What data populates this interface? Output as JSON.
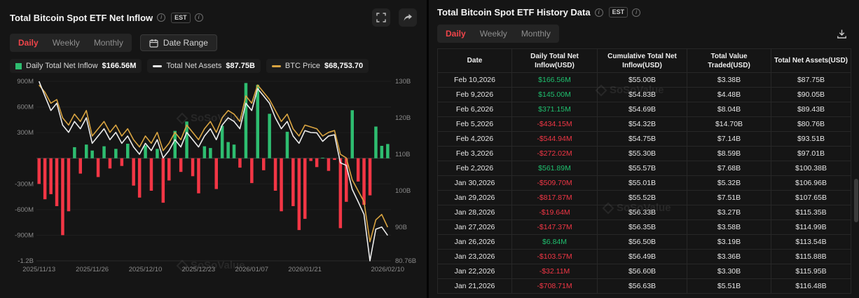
{
  "colors": {
    "accent_red": "#f0454a",
    "positive_green": "#2ebd70",
    "negative_red": "#f23645",
    "line_white": "#ececec",
    "line_orange": "#d9a441",
    "axis_text": "#8a8a8a"
  },
  "left_panel": {
    "title": "Total Bitcoin Spot ETF Net Inflow",
    "est_label": "EST",
    "tabs": [
      "Daily",
      "Weekly",
      "Monthly"
    ],
    "active_tab": "Daily",
    "date_range_label": "Date Range",
    "watermark": "SoSoValue",
    "legend": [
      {
        "label": "Daily Total Net Inflow",
        "value": "$166.56M",
        "color": "#2ebd70",
        "marker": "square"
      },
      {
        "label": "Total Net Assets",
        "value": "$87.75B",
        "color": "#ececec",
        "marker": "dash"
      },
      {
        "label": "BTC Price",
        "value": "$68,753.70",
        "color": "#d9a441",
        "marker": "dash"
      }
    ]
  },
  "chart_data": {
    "type": "combo_bar_line",
    "title": "Total Bitcoin Spot ETF Net Inflow",
    "left_axis": {
      "unit": "USD",
      "ticks": [
        "900M",
        "600M",
        "300M",
        "-300M",
        "-600M",
        "-900M"
      ],
      "bottom_label": "-1.2B",
      "range_m": [
        -1200,
        900
      ]
    },
    "right_axis": {
      "unit": "USD",
      "ticks": [
        "130B",
        "120B",
        "110B",
        "100B",
        "90B"
      ],
      "bottom_label": "80.76B",
      "range_b": [
        80.76,
        130
      ]
    },
    "x_ticks": [
      "2025/11/13",
      "2025/11/26",
      "2025/12/10",
      "2025/12/23",
      "2026/01/07",
      "2026/01/21",
      "2026/02/10"
    ],
    "x_tick_idx": [
      0,
      9,
      18,
      27,
      36,
      45,
      59
    ],
    "dates": [
      "2025/11/13",
      "2025/11/14",
      "2025/11/17",
      "2025/11/18",
      "2025/11/19",
      "2025/11/20",
      "2025/11/21",
      "2025/11/24",
      "2025/11/25",
      "2025/11/26",
      "2025/11/28",
      "2025/12/01",
      "2025/12/02",
      "2025/12/03",
      "2025/12/04",
      "2025/12/05",
      "2025/12/08",
      "2025/12/09",
      "2025/12/10",
      "2025/12/11",
      "2025/12/12",
      "2025/12/15",
      "2025/12/16",
      "2025/12/17",
      "2025/12/18",
      "2025/12/19",
      "2025/12/22",
      "2025/12/23",
      "2025/12/24",
      "2025/12/26",
      "2025/12/29",
      "2025/12/30",
      "2025/12/31",
      "2026/01/02",
      "2026/01/05",
      "2026/01/06",
      "2026/01/07",
      "2026/01/08",
      "2026/01/09",
      "2026/01/12",
      "2026/01/13",
      "2026/01/14",
      "2026/01/15",
      "2026/01/16",
      "2026/01/20",
      "2026/01/21",
      "2026/01/22",
      "2026/01/23",
      "2026/01/26",
      "2026/01/27",
      "2026/01/28",
      "2026/01/29",
      "2026/01/30",
      "2026/02/02",
      "2026/02/03",
      "2026/02/04",
      "2026/02/05",
      "2026/02/06",
      "2026/02/09",
      "2026/02/10"
    ],
    "net_inflow_m": [
      -300,
      -480,
      -420,
      -560,
      -900,
      -620,
      130,
      -180,
      160,
      90,
      -220,
      140,
      -120,
      110,
      -90,
      170,
      -320,
      -460,
      150,
      -380,
      110,
      -520,
      -260,
      320,
      -160,
      430,
      -210,
      -410,
      140,
      120,
      -360,
      380,
      190,
      160,
      -110,
      880,
      -290,
      860,
      -140,
      520,
      -380,
      -620,
      310,
      -560,
      -840,
      -708.71,
      -32.11,
      -103.57,
      6.84,
      -147.37,
      -19.64,
      -817.87,
      -509.7,
      561.89,
      -272.02,
      -544.94,
      -434.15,
      371.15,
      145,
      166.56
    ],
    "net_assets_b": [
      130,
      126,
      122,
      124,
      118,
      116,
      119,
      117,
      120,
      113,
      115,
      117,
      114,
      116,
      113,
      115,
      112,
      110,
      113,
      111,
      114,
      109,
      111,
      114,
      112,
      116,
      114,
      112,
      115,
      117,
      114,
      118,
      120,
      119,
      117,
      124,
      122,
      128,
      126,
      124,
      120,
      117,
      119,
      115,
      113,
      116.48,
      115.95,
      115.88,
      113.54,
      114.99,
      115.35,
      107.65,
      106.96,
      100.38,
      97.01,
      93.51,
      80.76,
      89.43,
      90.05,
      87.75
    ],
    "btc_price_b": [
      129,
      127,
      124,
      125,
      120,
      118,
      121,
      119,
      122,
      115,
      117,
      119,
      116,
      118,
      115,
      117,
      114,
      112,
      115,
      113,
      116,
      111,
      113,
      116,
      114,
      118,
      116,
      114,
      117,
      119,
      116,
      120,
      122,
      121,
      119,
      126,
      124,
      129,
      127,
      125,
      122,
      119,
      121,
      117,
      115,
      118,
      117.5,
      117,
      115,
      116,
      116.5,
      110,
      109,
      103,
      100,
      97,
      86,
      92,
      93.5,
      90
    ],
    "legend_position": "top",
    "grid": true
  },
  "right_panel": {
    "title": "Total Bitcoin Spot ETF History Data",
    "est_label": "EST",
    "tabs": [
      "Daily",
      "Weekly",
      "Monthly"
    ],
    "active_tab": "Daily",
    "watermark": "SoSoValue",
    "table": {
      "headers": [
        "Date",
        "Daily Total Net Inflow(USD)",
        "Cumulative Total Net Inflow(USD)",
        "Total Value Traded(USD)",
        "Total Net Assets(USD)"
      ],
      "rows": [
        {
          "date": "Feb 10,2026",
          "inflow": "$166.56M",
          "trend": "pos",
          "cumulative": "$55.00B",
          "traded": "$3.38B",
          "assets": "$87.75B"
        },
        {
          "date": "Feb 9,2026",
          "inflow": "$145.00M",
          "trend": "pos",
          "cumulative": "$54.83B",
          "traded": "$4.48B",
          "assets": "$90.05B"
        },
        {
          "date": "Feb 6,2026",
          "inflow": "$371.15M",
          "trend": "pos",
          "cumulative": "$54.69B",
          "traded": "$8.04B",
          "assets": "$89.43B"
        },
        {
          "date": "Feb 5,2026",
          "inflow": "-$434.15M",
          "trend": "neg",
          "cumulative": "$54.32B",
          "traded": "$14.70B",
          "assets": "$80.76B"
        },
        {
          "date": "Feb 4,2026",
          "inflow": "-$544.94M",
          "trend": "neg",
          "cumulative": "$54.75B",
          "traded": "$7.14B",
          "assets": "$93.51B"
        },
        {
          "date": "Feb 3,2026",
          "inflow": "-$272.02M",
          "trend": "neg",
          "cumulative": "$55.30B",
          "traded": "$8.59B",
          "assets": "$97.01B"
        },
        {
          "date": "Feb 2,2026",
          "inflow": "$561.89M",
          "trend": "pos",
          "cumulative": "$55.57B",
          "traded": "$7.68B",
          "assets": "$100.38B"
        },
        {
          "date": "Jan 30,2026",
          "inflow": "-$509.70M",
          "trend": "neg",
          "cumulative": "$55.01B",
          "traded": "$5.32B",
          "assets": "$106.96B"
        },
        {
          "date": "Jan 29,2026",
          "inflow": "-$817.87M",
          "trend": "neg",
          "cumulative": "$55.52B",
          "traded": "$7.51B",
          "assets": "$107.65B"
        },
        {
          "date": "Jan 28,2026",
          "inflow": "-$19.64M",
          "trend": "neg",
          "cumulative": "$56.33B",
          "traded": "$3.27B",
          "assets": "$115.35B"
        },
        {
          "date": "Jan 27,2026",
          "inflow": "-$147.37M",
          "trend": "neg",
          "cumulative": "$56.35B",
          "traded": "$3.58B",
          "assets": "$114.99B"
        },
        {
          "date": "Jan 26,2026",
          "inflow": "$6.84M",
          "trend": "pos",
          "cumulative": "$56.50B",
          "traded": "$3.19B",
          "assets": "$113.54B"
        },
        {
          "date": "Jan 23,2026",
          "inflow": "-$103.57M",
          "trend": "neg",
          "cumulative": "$56.49B",
          "traded": "$3.36B",
          "assets": "$115.88B"
        },
        {
          "date": "Jan 22,2026",
          "inflow": "-$32.11M",
          "trend": "neg",
          "cumulative": "$56.60B",
          "traded": "$3.30B",
          "assets": "$115.95B"
        },
        {
          "date": "Jan 21,2026",
          "inflow": "-$708.71M",
          "trend": "neg",
          "cumulative": "$56.63B",
          "traded": "$5.51B",
          "assets": "$116.48B"
        }
      ]
    }
  }
}
